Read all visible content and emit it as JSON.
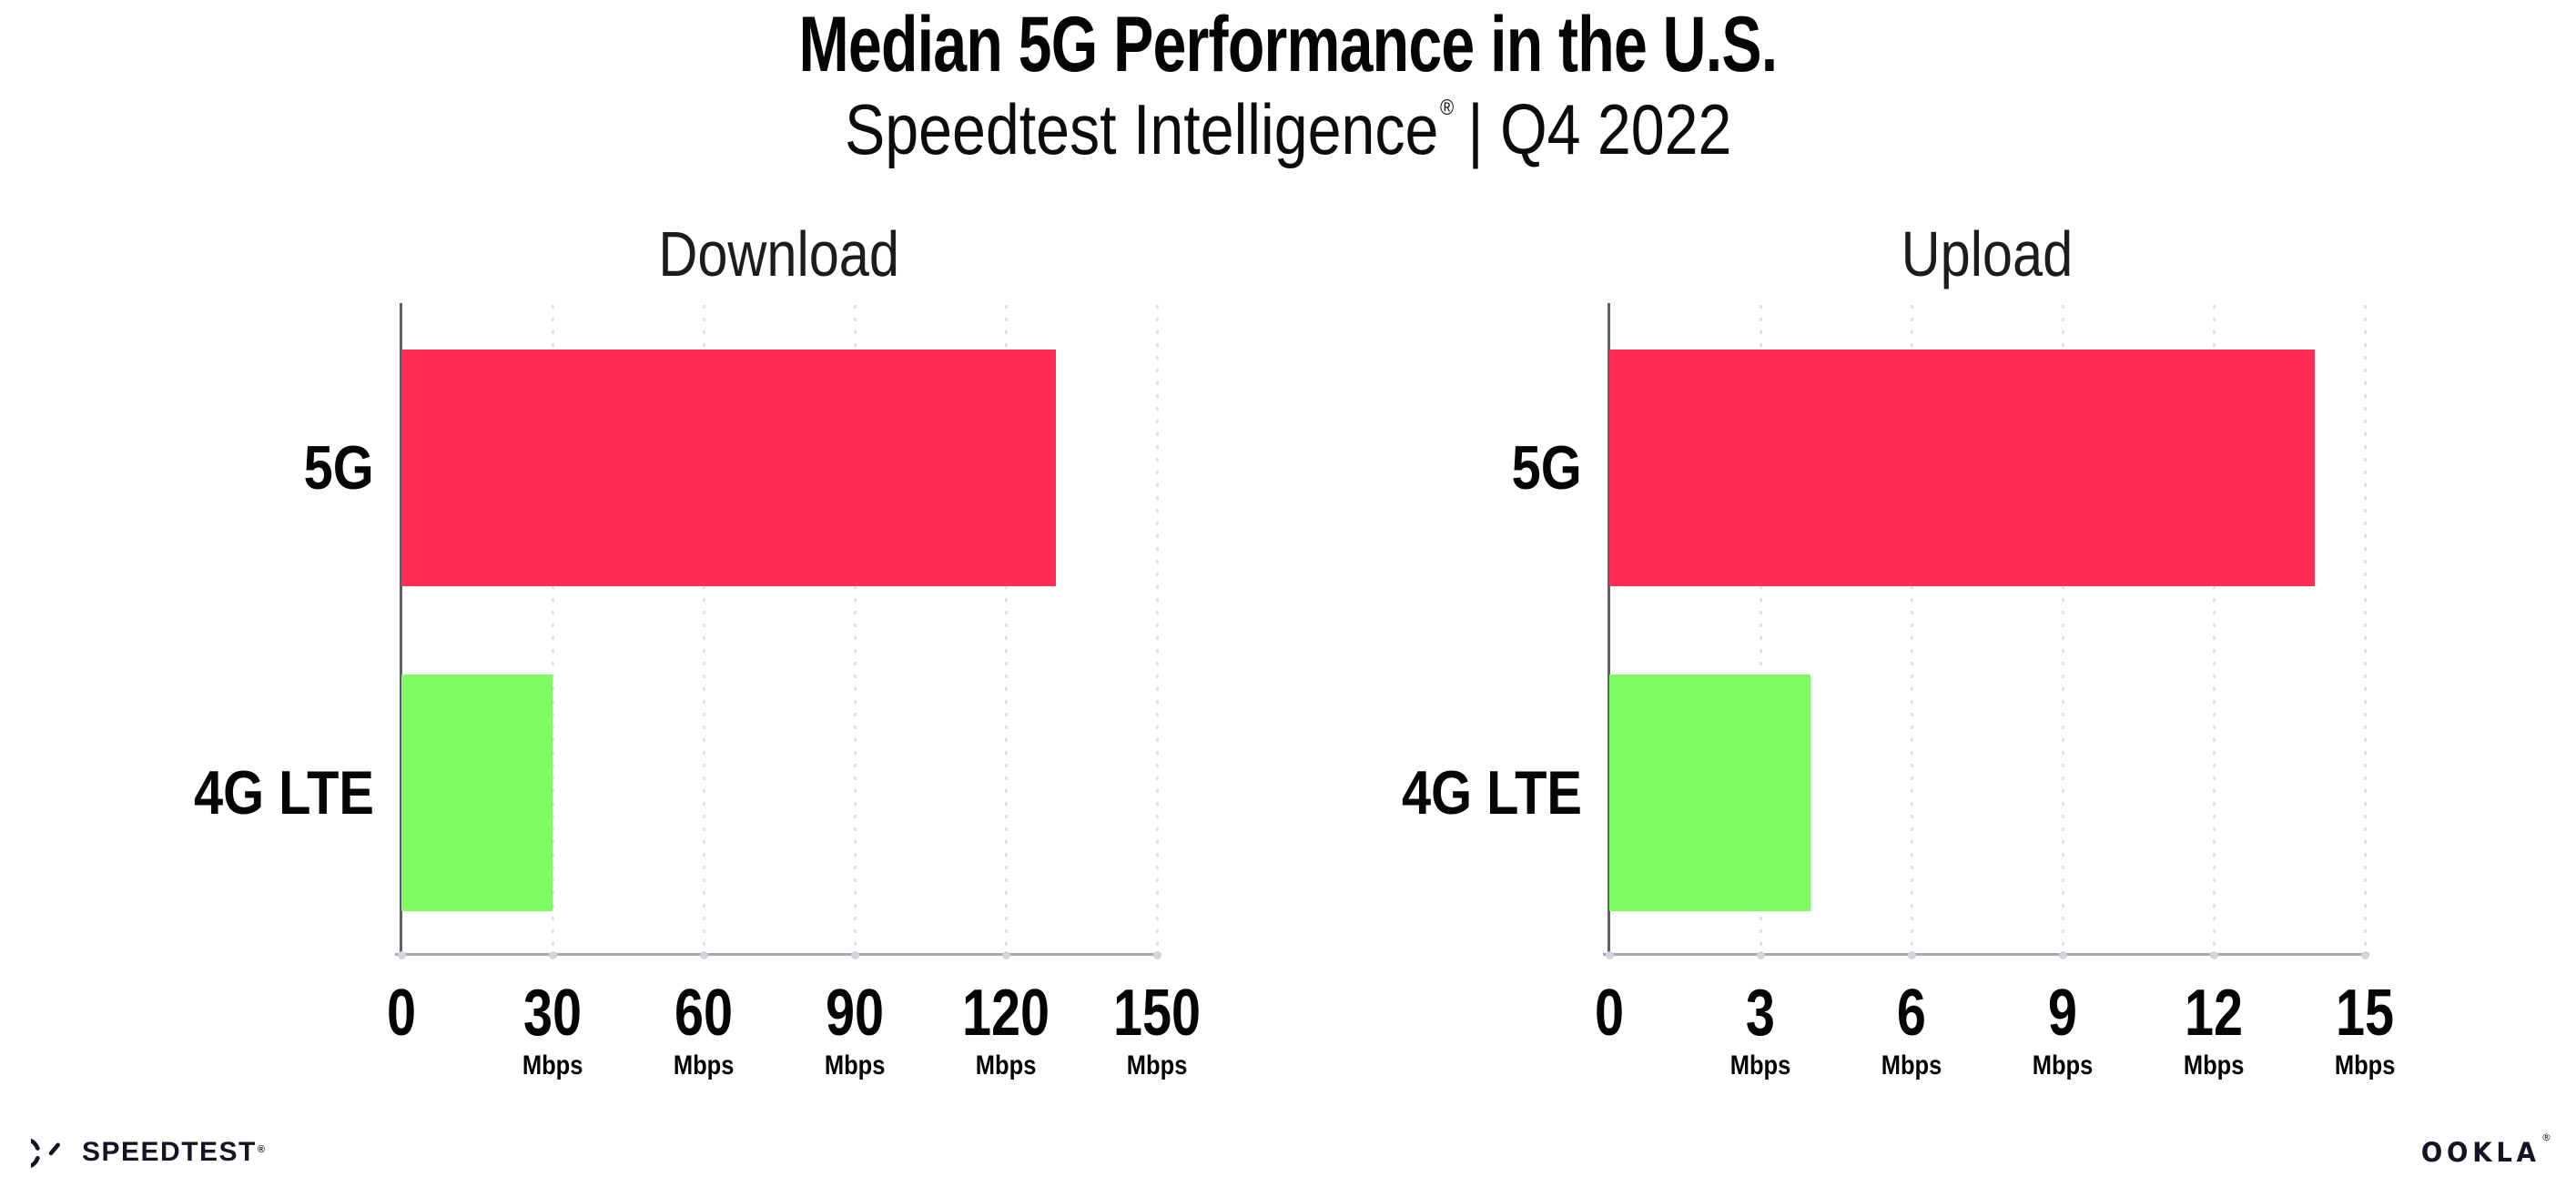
{
  "title": "Median 5G Performance in the U.S.",
  "subtitle": {
    "brand": "Speedtest Intelligence",
    "registered_mark": "®",
    "tail": "| Q4 2022",
    "display": "Speedtest Intelligence® | Q4 2022"
  },
  "colors": {
    "bar_5g": "#ff2d55",
    "bar_4g_lte": "#7dfc66",
    "gridline": "#e2e2ea",
    "x_axis_line": "#a6a6ad",
    "y_axis_line": "#5f5f66",
    "text": "#050505"
  },
  "chart_data": [
    {
      "type": "bar",
      "orientation": "horizontal",
      "title": "Download",
      "categories": [
        "5G",
        "4G LTE"
      ],
      "values": [
        130,
        30
      ],
      "unit": "Mbps",
      "xlim": [
        0,
        150
      ],
      "xticks": [
        0,
        30,
        60,
        90,
        120,
        150
      ],
      "tick_unit_label": "Mbps",
      "grid": "vertical-dotted",
      "legend": "none"
    },
    {
      "type": "bar",
      "orientation": "horizontal",
      "title": "Upload",
      "categories": [
        "5G",
        "4G LTE"
      ],
      "values": [
        14,
        4
      ],
      "unit": "Mbps",
      "xlim": [
        0,
        15
      ],
      "xticks": [
        0,
        3,
        6,
        9,
        12,
        15
      ],
      "tick_unit_label": "Mbps",
      "grid": "vertical-dotted",
      "legend": "none"
    }
  ],
  "footer": {
    "speedtest_logo_text": "SPEEDTEST",
    "speedtest_mark": "®",
    "ookla_logo_text": "OOKLA",
    "ookla_mark": "®"
  }
}
